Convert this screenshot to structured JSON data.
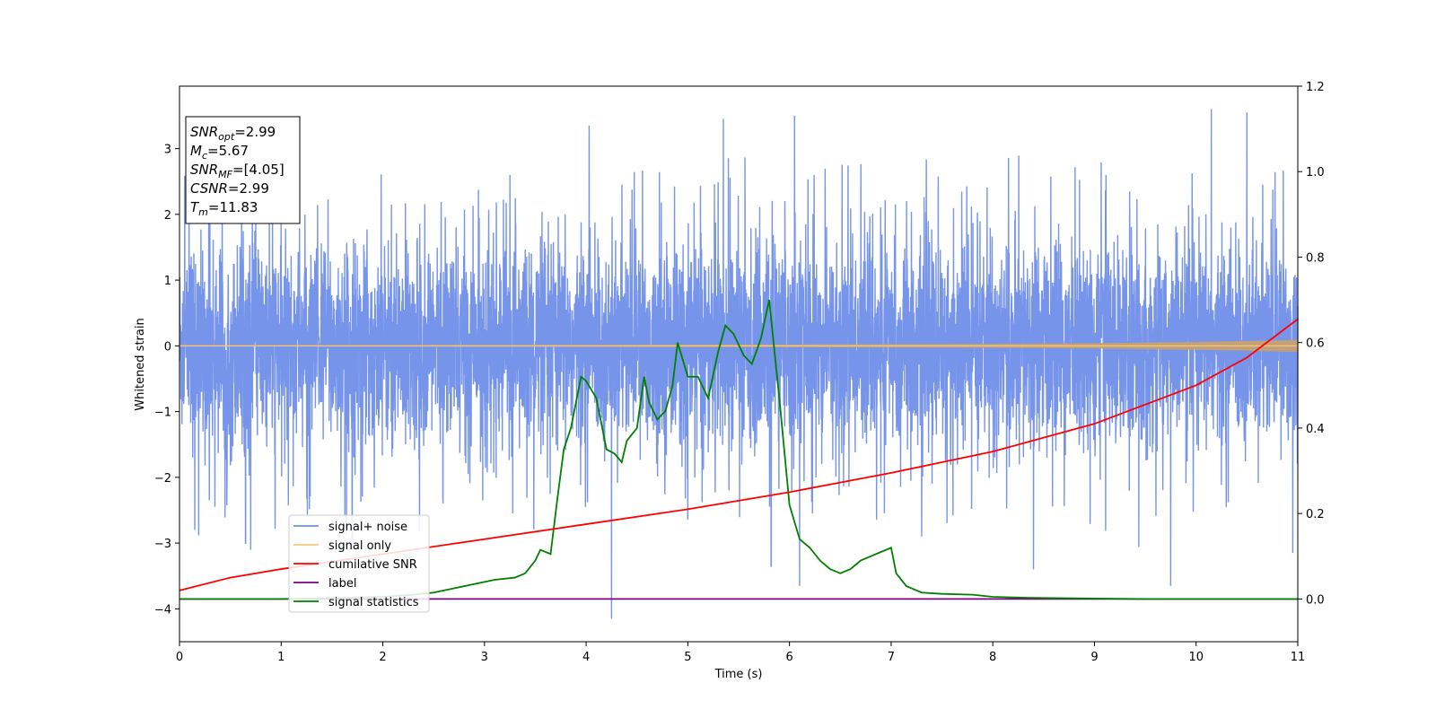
{
  "chart_data": {
    "type": "line",
    "xlabel": "Time (s)",
    "ylabel": "Whitened strain",
    "xlim": [
      0,
      11
    ],
    "ylim": [
      -4.5,
      3.95
    ],
    "ylim_right": [
      -0.1,
      1.2
    ],
    "x_ticks": [
      0,
      1,
      2,
      3,
      4,
      5,
      6,
      7,
      8,
      9,
      10,
      11
    ],
    "y_ticks": [
      3,
      2,
      1,
      0,
      -1,
      -2,
      -3,
      -4
    ],
    "y_ticks_right": [
      1.2,
      1.0,
      0.8,
      0.6,
      0.4,
      0.2,
      0.0
    ],
    "grid": false,
    "legend_position": "lower-left",
    "colors": {
      "signal_noise": "#6f8ee8",
      "signal_only": "#f5c878",
      "signal_only_fill": "#c4a079",
      "cumulative_snr": "#ff0000",
      "label": "#800080",
      "signal_statistics": "#008000"
    },
    "annotation": {
      "lines": [
        {
          "sym": "SNR",
          "sub": "opt",
          "val": "=2.99"
        },
        {
          "sym": "M",
          "sub": "c",
          "val": "=5.67"
        },
        {
          "sym": "SNR",
          "sub": "MF",
          "val": "=[4.05]"
        },
        {
          "sym": "CSNR",
          "sub": "",
          "val": "=2.99"
        },
        {
          "sym": "T",
          "sub": "m",
          "val": "=11.83"
        }
      ]
    },
    "series": [
      {
        "name": "signal+ noise",
        "axis": "left",
        "style": "dense_noise",
        "envelope": [
          [
            0,
            1.9,
            -1.9
          ],
          [
            11,
            1.9,
            -1.9
          ]
        ],
        "peaks": [
          [
            0.15,
            -2.8
          ],
          [
            0.65,
            -3.0
          ],
          [
            0.7,
            -3.1
          ],
          [
            1.7,
            -3.1
          ],
          [
            4.03,
            3.35
          ],
          [
            4.25,
            -4.15
          ],
          [
            5.35,
            3.45
          ],
          [
            5.82,
            -3.35
          ],
          [
            6.05,
            3.5
          ],
          [
            6.1,
            -3.65
          ],
          [
            7.3,
            -2.9
          ],
          [
            8.4,
            -3.4
          ],
          [
            9.75,
            -3.65
          ],
          [
            10.15,
            3.6
          ],
          [
            10.5,
            3.55
          ],
          [
            10.95,
            -3.15
          ]
        ]
      },
      {
        "name": "signal only",
        "axis": "left",
        "x": [
          0,
          2,
          4,
          6,
          8,
          9,
          10,
          10.5,
          11
        ],
        "amplitude": [
          0.01,
          0.012,
          0.015,
          0.02,
          0.03,
          0.04,
          0.06,
          0.075,
          0.09
        ]
      },
      {
        "name": "cumilative SNR",
        "axis": "right",
        "x": [
          0,
          0.5,
          1,
          2,
          3,
          4,
          5,
          6,
          7,
          8,
          9,
          10,
          10.5,
          11
        ],
        "values": [
          0.02,
          0.05,
          0.07,
          0.105,
          0.14,
          0.175,
          0.21,
          0.25,
          0.295,
          0.345,
          0.41,
          0.5,
          0.565,
          0.655
        ]
      },
      {
        "name": "label",
        "axis": "right",
        "x": [
          0,
          11
        ],
        "values": [
          0,
          0
        ]
      },
      {
        "name": "signal statistics",
        "axis": "right",
        "x": [
          0,
          0.5,
          1,
          1.5,
          2,
          2.3,
          2.5,
          2.7,
          2.9,
          3.0,
          3.1,
          3.3,
          3.4,
          3.5,
          3.55,
          3.65,
          3.72,
          3.78,
          3.85,
          3.95,
          4.0,
          4.1,
          4.2,
          4.28,
          4.35,
          4.4,
          4.5,
          4.57,
          4.62,
          4.7,
          4.78,
          4.85,
          4.9,
          5.0,
          5.1,
          5.2,
          5.3,
          5.37,
          5.45,
          5.55,
          5.63,
          5.72,
          5.8,
          5.9,
          6.0,
          6.1,
          6.2,
          6.3,
          6.4,
          6.5,
          6.6,
          6.7,
          6.8,
          6.9,
          7.0,
          7.05,
          7.15,
          7.3,
          7.5,
          7.8,
          8.0,
          8.3,
          8.6,
          9.0,
          9.5,
          10.0,
          11.0
        ],
        "values": [
          0,
          0.0,
          0.0,
          0.002,
          0.005,
          0.01,
          0.015,
          0.025,
          0.035,
          0.04,
          0.045,
          0.05,
          0.06,
          0.09,
          0.115,
          0.105,
          0.24,
          0.35,
          0.4,
          0.52,
          0.51,
          0.47,
          0.35,
          0.34,
          0.32,
          0.37,
          0.4,
          0.52,
          0.46,
          0.42,
          0.44,
          0.5,
          0.6,
          0.52,
          0.52,
          0.47,
          0.58,
          0.64,
          0.62,
          0.57,
          0.55,
          0.61,
          0.7,
          0.47,
          0.22,
          0.14,
          0.12,
          0.09,
          0.07,
          0.06,
          0.07,
          0.09,
          0.1,
          0.11,
          0.12,
          0.06,
          0.03,
          0.015,
          0.012,
          0.01,
          0.005,
          0.003,
          0.002,
          0.001,
          0.0,
          0.0,
          0.0
        ]
      }
    ]
  }
}
